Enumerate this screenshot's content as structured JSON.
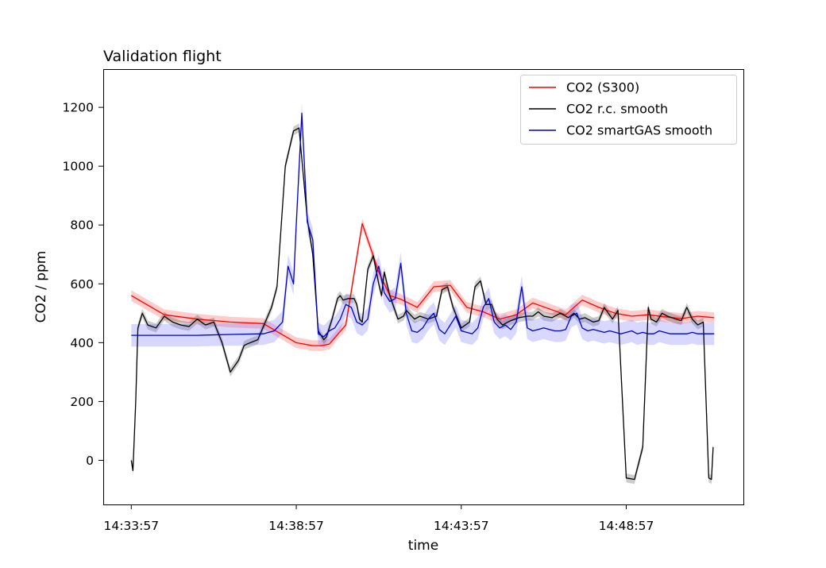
{
  "chart_data": {
    "type": "line",
    "title": "Validation flight",
    "xlabel": "time",
    "ylabel": "CO2 / ppm",
    "x_ticks": [
      "14:33:57",
      "14:38:57",
      "14:43:57",
      "14:48:57"
    ],
    "y_ticks": [
      0,
      200,
      400,
      600,
      800,
      1000,
      1200
    ],
    "xlim": [
      "14:33:06",
      "14:52:30"
    ],
    "ylim": [
      -150,
      1330
    ],
    "grid": false,
    "legend_position": "top-right",
    "x_time_start": "14:33:57",
    "x_time_end": "14:51:37",
    "series": [
      {
        "name": "CO2 (S300)",
        "color": "#ff0000",
        "band_color": "#ff0000",
        "band_half_width": 18,
        "x_sec": [
          0,
          60,
          120,
          180,
          240,
          300,
          330,
          345,
          360,
          390,
          420,
          450,
          470,
          490,
          520,
          550,
          580,
          610,
          640,
          670,
          700,
          730,
          760,
          790,
          820,
          850,
          880,
          910,
          940,
          970,
          1000,
          1030,
          1060
        ],
        "y": [
          560,
          495,
          480,
          470,
          465,
          400,
          390,
          390,
          395,
          460,
          805,
          640,
          560,
          548,
          520,
          590,
          595,
          520,
          505,
          480,
          495,
          535,
          515,
          495,
          545,
          520,
          500,
          490,
          495,
          488,
          482,
          490,
          485
        ]
      },
      {
        "name": "CO2 r.c. smooth",
        "color": "#000000",
        "band_color": "#000000",
        "band_half_width": 15,
        "x_sec": [
          0,
          3,
          8,
          12,
          20,
          30,
          45,
          60,
          75,
          90,
          105,
          120,
          135,
          150,
          165,
          180,
          195,
          205,
          210,
          230,
          255,
          265,
          280,
          295,
          305,
          320,
          330,
          340,
          350,
          355,
          365,
          375,
          380,
          385,
          395,
          405,
          410,
          415,
          420,
          430,
          440,
          450,
          455,
          460,
          470,
          485,
          495,
          500,
          505,
          515,
          525,
          540,
          555,
          565,
          575,
          585,
          600,
          615,
          625,
          635,
          645,
          655,
          665,
          675,
          690,
          705,
          720,
          730,
          740,
          750,
          765,
          780,
          795,
          805,
          815,
          825,
          840,
          850,
          860,
          875,
          885,
          900,
          915,
          930,
          940,
          945,
          955,
          965,
          975,
          990,
          1000,
          1010,
          1020,
          1030,
          1040,
          1050,
          1055,
          1058
        ],
        "y": [
          0,
          -35,
          200,
          450,
          500,
          460,
          450,
          490,
          470,
          460,
          455,
          480,
          460,
          470,
          400,
          300,
          340,
          390,
          395,
          410,
          520,
          590,
          1000,
          1120,
          1130,
          820,
          700,
          440,
          410,
          420,
          480,
          550,
          560,
          545,
          550,
          550,
          530,
          480,
          470,
          650,
          695,
          600,
          560,
          640,
          560,
          480,
          490,
          510,
          500,
          480,
          490,
          480,
          490,
          580,
          590,
          520,
          450,
          470,
          590,
          610,
          530,
          530,
          480,
          460,
          475,
          485,
          490,
          490,
          505,
          490,
          485,
          500,
          485,
          500,
          480,
          485,
          470,
          475,
          520,
          480,
          510,
          -60,
          -65,
          45,
          520,
          480,
          470,
          500,
          490,
          480,
          475,
          520,
          480,
          460,
          470,
          -60,
          -65,
          45
        ]
      },
      {
        "name": "CO2 smartGAS smooth",
        "color": "#0000cc",
        "band_color": "#6464ff",
        "band_half_width": 38,
        "x_sec": [
          0,
          60,
          120,
          180,
          240,
          260,
          275,
          285,
          295,
          300,
          310,
          320,
          330,
          340,
          350,
          360,
          370,
          380,
          390,
          400,
          410,
          420,
          430,
          440,
          450,
          460,
          470,
          480,
          490,
          500,
          510,
          520,
          530,
          540,
          550,
          560,
          570,
          580,
          590,
          600,
          610,
          620,
          630,
          640,
          650,
          660,
          670,
          680,
          690,
          700,
          710,
          720,
          730,
          740,
          750,
          760,
          770,
          780,
          790,
          800,
          810,
          820,
          830,
          840,
          850,
          860,
          870,
          880,
          890,
          900,
          910,
          920,
          930,
          940,
          950,
          960,
          970,
          980,
          990,
          1000,
          1010,
          1020,
          1030,
          1040,
          1050,
          1060
        ],
        "y": [
          425,
          425,
          425,
          428,
          430,
          440,
          470,
          660,
          600,
          800,
          1180,
          810,
          750,
          430,
          420,
          440,
          450,
          480,
          530,
          520,
          470,
          460,
          480,
          600,
          660,
          570,
          540,
          550,
          670,
          500,
          440,
          435,
          450,
          480,
          500,
          445,
          430,
          460,
          490,
          440,
          435,
          430,
          450,
          520,
          550,
          470,
          450,
          460,
          445,
          470,
          590,
          450,
          440,
          445,
          450,
          445,
          440,
          440,
          445,
          490,
          500,
          450,
          440,
          445,
          440,
          435,
          440,
          435,
          430,
          435,
          440,
          430,
          435,
          430,
          430,
          440,
          435,
          430,
          430,
          430,
          430,
          435,
          430,
          430,
          430,
          430
        ]
      }
    ]
  }
}
